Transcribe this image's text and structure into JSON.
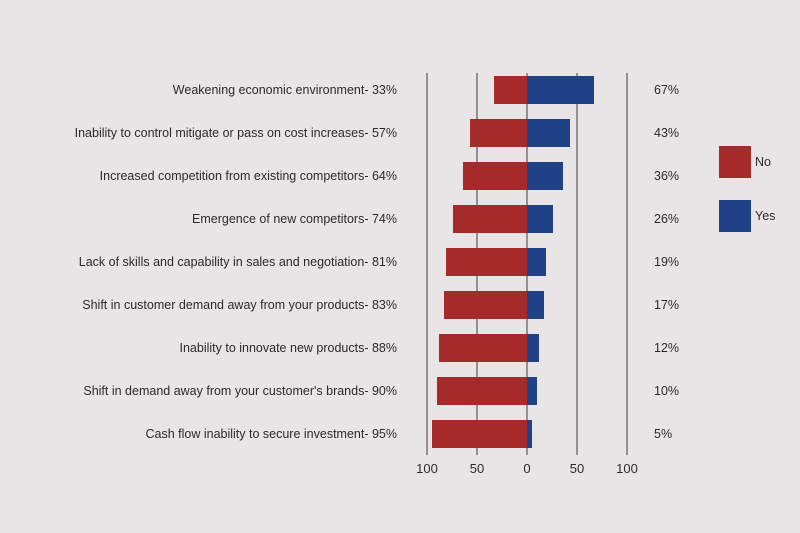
{
  "chart_data": {
    "type": "bar",
    "orientation": "horizontal-diverging",
    "categories": [
      "Weakening economic environment- 33%",
      "Inability to control mitigate or pass on cost increases- 57%",
      "Increased competition from existing competitors- 64%",
      "Emergence of new competitors- 74%",
      "Lack of skills and capability in sales and negotiation- 81%",
      "Shift in customer demand away from your products- 83%",
      "Inability to innovate new products- 88%",
      "Shift in demand away from your customer's brands- 90%",
      "Cash flow inability to secure investment- 95%"
    ],
    "series": [
      {
        "name": "No",
        "color": "#a52a2a",
        "values": [
          33,
          57,
          64,
          74,
          81,
          83,
          88,
          90,
          95
        ]
      },
      {
        "name": "Yes",
        "color": "#1e4285",
        "values": [
          67,
          43,
          36,
          26,
          19,
          17,
          12,
          10,
          5
        ]
      }
    ],
    "yes_labels": [
      "67%",
      "43%",
      "36%",
      "26%",
      "19%",
      "17%",
      "12%",
      "10%",
      "5%"
    ],
    "x_ticks": [
      {
        "value": -100,
        "label": "100"
      },
      {
        "value": -50,
        "label": "50"
      },
      {
        "value": 0,
        "label": "0"
      },
      {
        "value": 50,
        "label": "50"
      },
      {
        "value": 100,
        "label": "100"
      }
    ],
    "xlim": [
      -100,
      100
    ],
    "grid": "vertical",
    "legend": {
      "position": "right",
      "items": [
        {
          "label": "No",
          "color": "#a52a2a"
        },
        {
          "label": "Yes",
          "color": "#1e4285"
        }
      ]
    }
  }
}
